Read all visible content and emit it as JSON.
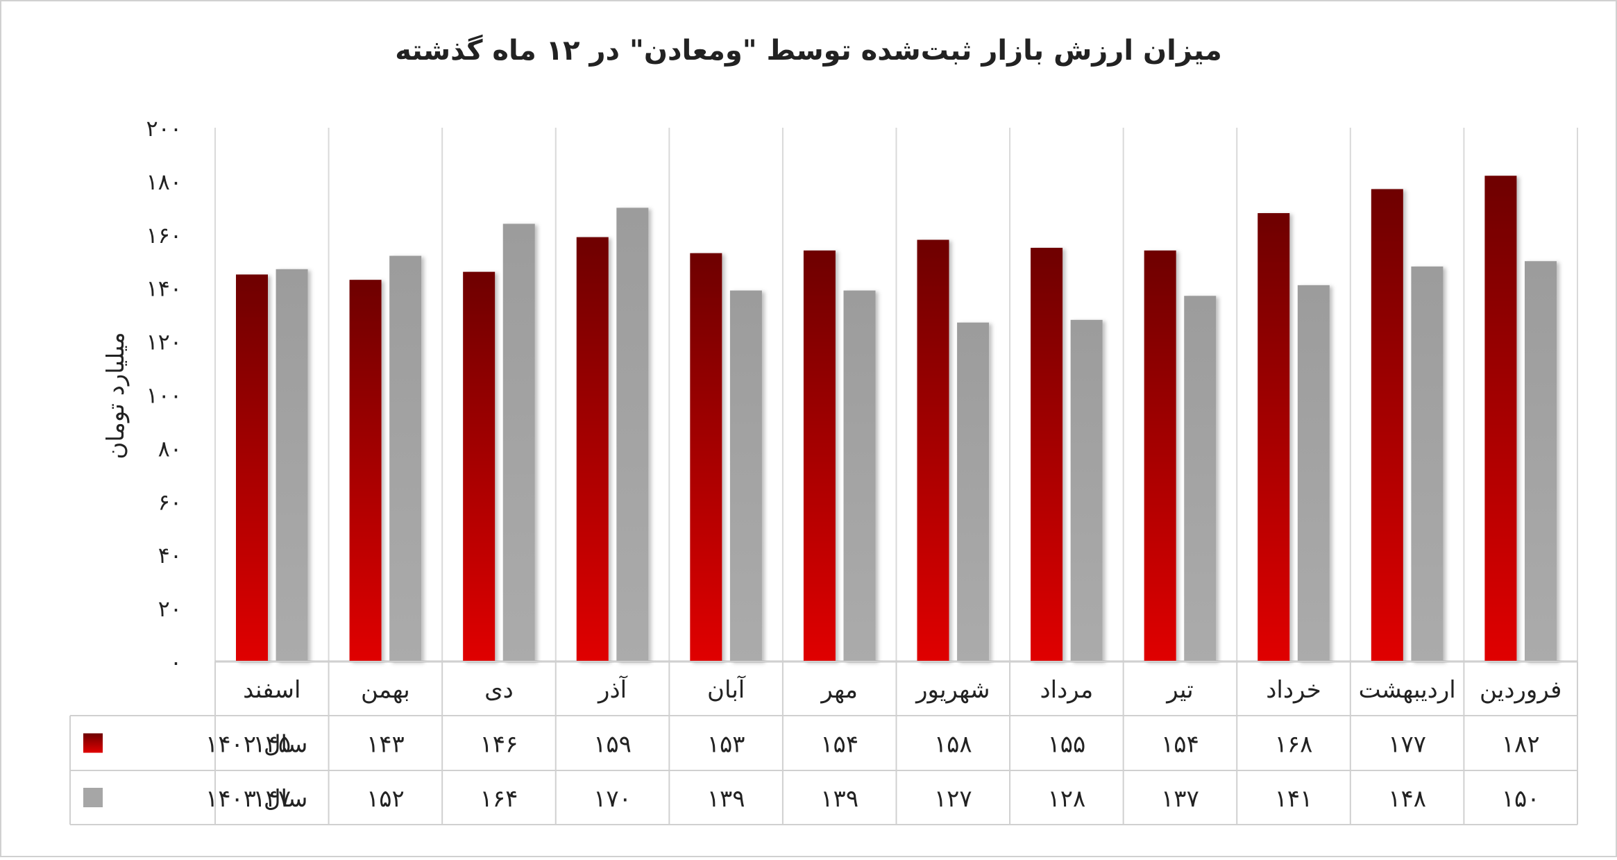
{
  "chart_data": {
    "type": "bar",
    "title": "میزان ارزش بازار ثبت‌شده توسط \"ومعادن\" در ۱۲ ماه گذشته",
    "ylabel": "میلیارد تومان",
    "ylim": [
      0,
      200
    ],
    "yticks": [
      0,
      20,
      40,
      60,
      80,
      100,
      120,
      140,
      160,
      180,
      200
    ],
    "ytick_labels": [
      "۰",
      "۲۰",
      "۴۰",
      "۶۰",
      "۸۰",
      "۱۰۰",
      "۱۲۰",
      "۱۴۰",
      "۱۶۰",
      "۱۸۰",
      "۲۰۰"
    ],
    "grid": "vertical",
    "legend": "in-table-left",
    "categories": [
      "فروردین",
      "اردیبهشت",
      "خرداد",
      "تیر",
      "مرداد",
      "شهریور",
      "مهر",
      "آبان",
      "آذر",
      "دی",
      "بهمن",
      "اسفند"
    ],
    "series": [
      {
        "name": "سال ۱۴۰۲",
        "color": "#c00000",
        "values": [
          182,
          177,
          168,
          154,
          155,
          158,
          154,
          153,
          159,
          146,
          143,
          145
        ],
        "value_labels": [
          "۱۸۲",
          "۱۷۷",
          "۱۶۸",
          "۱۵۴",
          "۱۵۵",
          "۱۵۸",
          "۱۵۴",
          "۱۵۳",
          "۱۵۹",
          "۱۴۶",
          "۱۴۳",
          "۱۴۵"
        ]
      },
      {
        "name": "سال ۱۴۰۳",
        "color": "#a6a6a6",
        "values": [
          150,
          148,
          141,
          137,
          128,
          127,
          139,
          139,
          170,
          164,
          152,
          147
        ],
        "value_labels": [
          "۱۵۰",
          "۱۴۸",
          "۱۴۱",
          "۱۳۷",
          "۱۲۸",
          "۱۲۷",
          "۱۳۹",
          "۱۳۹",
          "۱۷۰",
          "۱۶۴",
          "۱۵۲",
          "۱۴۷"
        ]
      }
    ]
  }
}
